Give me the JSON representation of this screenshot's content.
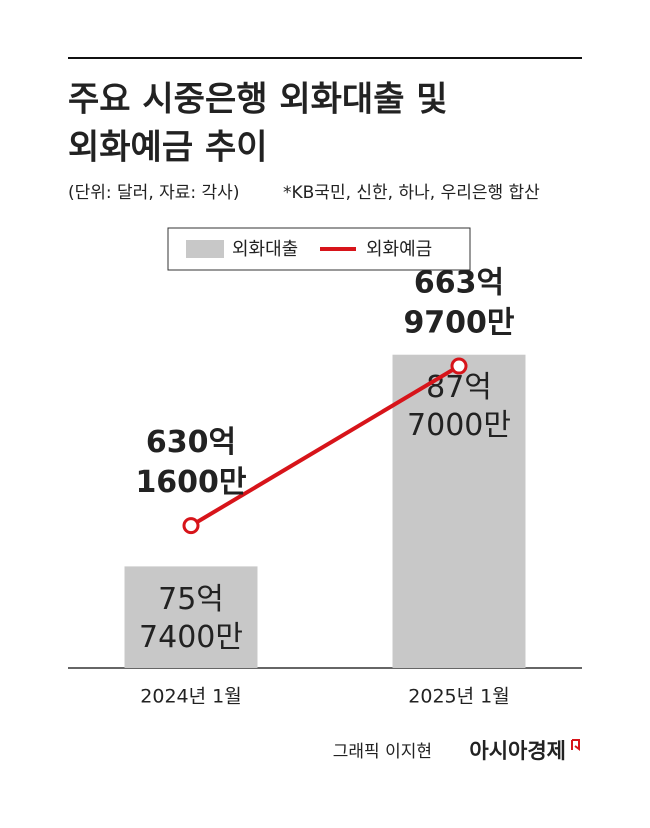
{
  "chart_data": {
    "type": "bar_line",
    "title": [
      "주요 시중은행 외화대출 및",
      "외화예금 추이"
    ],
    "subtitle": "(단위: 달러, 자료: 각사)",
    "note": "*KB국민, 신한, 하나, 우리은행 합산",
    "categories": [
      "2024년 1월",
      "2025년 1월"
    ],
    "series": [
      {
        "name": "외화대출",
        "type": "bar",
        "color": "#c8c8c8",
        "values": [
          7574000000,
          8770000000
        ],
        "value_labels": [
          [
            "75억",
            "7400만"
          ],
          [
            "87억",
            "7000만"
          ]
        ]
      },
      {
        "name": "외화예금",
        "type": "line",
        "axis": "y2",
        "color": "#d7141a",
        "values": [
          63016000000,
          66397000000
        ],
        "value_labels": [
          [
            "630억",
            "1600만"
          ],
          [
            "663억",
            "9700만"
          ]
        ]
      }
    ],
    "ylim": [
      7000000000,
      9000000000
    ],
    "y2lim": [
      60000000000,
      67500000000
    ]
  },
  "footer": {
    "credit": "그래픽 이지현",
    "logo": "아시아경제"
  }
}
